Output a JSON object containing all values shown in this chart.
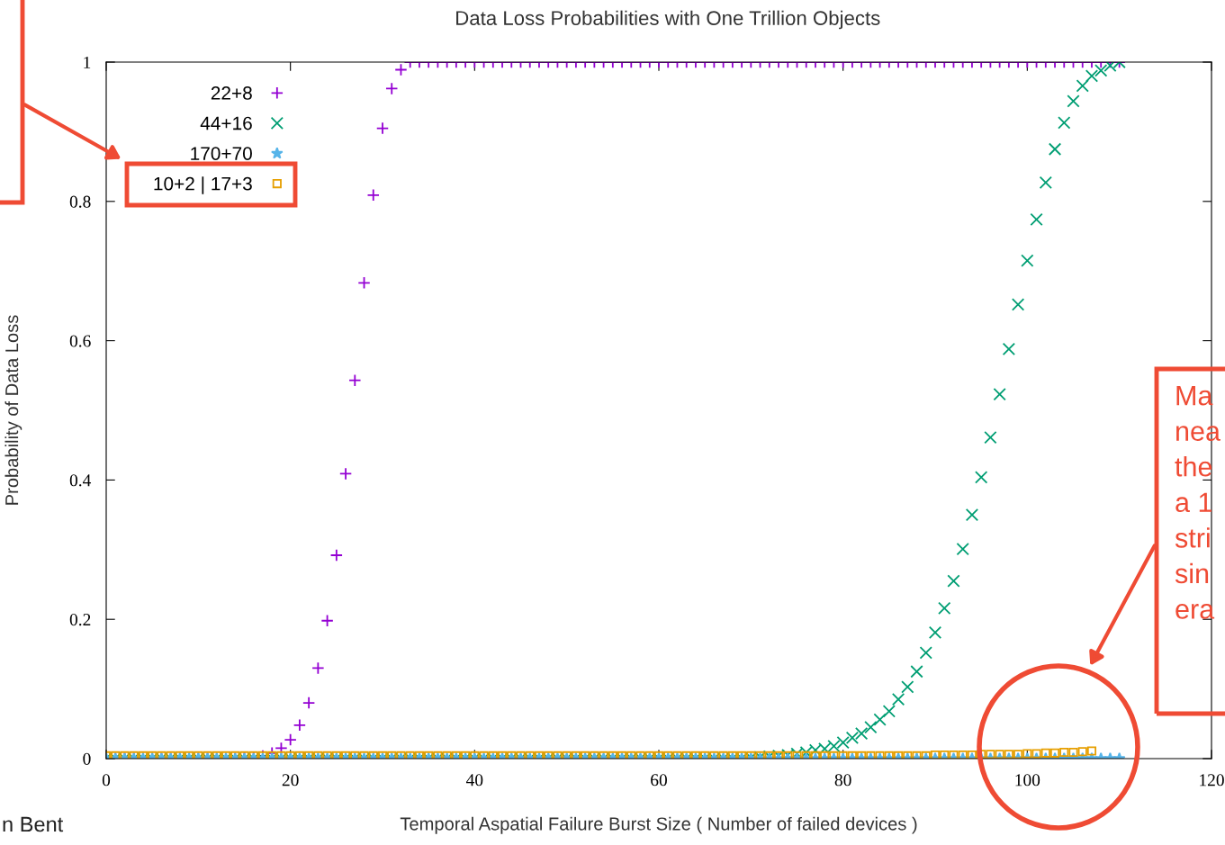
{
  "chart_data": {
    "type": "scatter",
    "title": "Data Loss Probabilities with One Trillion Objects",
    "xlabel": "Temporal Aspatial Failure Burst Size ( Number of failed devices )",
    "ylabel": "Probability of Data Loss",
    "x": [
      0,
      1,
      2,
      3,
      4,
      5,
      6,
      7,
      8,
      9,
      10,
      11,
      12,
      13,
      14,
      15,
      16,
      17,
      18,
      19,
      20,
      21,
      22,
      23,
      24,
      25,
      26,
      27,
      28,
      29,
      30,
      31,
      32,
      33,
      34,
      35,
      36,
      37,
      38,
      39,
      40,
      41,
      42,
      43,
      44,
      45,
      46,
      47,
      48,
      49,
      50,
      51,
      52,
      53,
      54,
      55,
      56,
      57,
      58,
      59,
      60,
      61,
      62,
      63,
      64,
      65,
      66,
      67,
      68,
      69,
      70,
      71,
      72,
      73,
      74,
      75,
      76,
      77,
      78,
      79,
      80,
      81,
      82,
      83,
      84,
      85,
      86,
      87,
      88,
      89,
      90,
      91,
      92,
      93,
      94,
      95,
      96,
      97,
      98,
      99,
      100,
      101,
      102,
      103,
      104,
      105,
      106,
      107,
      108,
      109,
      110
    ],
    "series": [
      {
        "name": "22+8",
        "color": "#9400d3",
        "marker": "plus",
        "values": [
          null,
          0,
          0,
          0,
          0,
          0,
          0,
          0,
          0,
          0,
          0,
          0,
          0,
          0,
          0,
          0.001,
          0.002,
          0.004,
          0.008,
          0.015,
          0.027,
          0.048,
          0.08,
          0.13,
          0.198,
          0.292,
          0.409,
          0.543,
          0.683,
          0.809,
          0.905,
          0.962,
          0.989,
          1,
          1,
          1,
          1,
          1,
          1,
          1,
          1,
          1,
          1,
          1,
          1,
          1,
          1,
          1,
          1,
          1,
          1,
          1,
          1,
          1,
          1,
          1,
          1,
          1,
          1,
          1,
          1,
          1,
          1,
          1,
          1,
          1,
          1,
          1,
          1,
          1,
          1,
          1,
          1,
          1,
          1,
          1,
          1,
          1,
          1,
          1,
          1,
          1,
          1,
          1,
          1,
          1,
          1,
          1,
          1,
          1,
          1,
          1,
          1,
          1,
          1,
          1,
          1,
          1,
          1,
          1,
          1,
          1,
          1,
          1,
          1,
          1,
          1,
          1,
          1,
          1,
          1
        ]
      },
      {
        "name": "44+16",
        "color": "#009e73",
        "marker": "cross",
        "values": [
          0,
          0,
          0,
          0,
          0,
          0,
          0,
          0,
          0,
          0,
          0,
          0,
          0,
          0,
          0,
          0,
          0,
          0,
          0,
          0,
          0,
          0,
          0,
          0,
          0,
          0,
          0,
          0,
          0,
          0,
          0,
          0,
          0,
          0,
          0,
          0,
          0,
          0,
          0,
          0,
          0,
          0,
          0,
          0,
          0,
          0,
          0,
          0,
          0,
          0,
          0,
          0,
          0,
          0,
          0,
          0,
          0,
          0,
          0,
          0,
          0,
          0,
          0,
          0,
          0,
          0,
          0,
          0,
          0,
          0,
          0.001,
          0.002,
          0.003,
          0.004,
          0.005,
          0.007,
          0.009,
          0.012,
          0.014,
          0.018,
          0.023,
          0.03,
          0.036,
          0.045,
          0.056,
          0.068,
          0.085,
          0.103,
          0.125,
          0.152,
          0.181,
          0.216,
          0.255,
          0.301,
          0.35,
          0.404,
          0.461,
          0.523,
          0.588,
          0.652,
          0.715,
          0.774,
          0.827,
          0.875,
          0.913,
          0.944,
          0.966,
          0.98,
          0.988,
          0.995,
          1.0
        ]
      },
      {
        "name": "170+70",
        "color": "#56b4e9",
        "marker": "star",
        "values": [
          0,
          0,
          0,
          0,
          0,
          0,
          0,
          0,
          0,
          0,
          0,
          0,
          0,
          0,
          0,
          0,
          0,
          0,
          0,
          0,
          0,
          0,
          0,
          0,
          0,
          0,
          0,
          0,
          0,
          0,
          0,
          0,
          0,
          0,
          0,
          0,
          0,
          0,
          0,
          0,
          0,
          0,
          0,
          0,
          0,
          0,
          0,
          0,
          0,
          0,
          0,
          0,
          0,
          0,
          0,
          0,
          0,
          0,
          0,
          0,
          0,
          0,
          0,
          0,
          0,
          0,
          0,
          0,
          0,
          0,
          0,
          0,
          0,
          0,
          0,
          0,
          0,
          0,
          0,
          0,
          0,
          0,
          0,
          0,
          0,
          0,
          0,
          0,
          0,
          0,
          0,
          0,
          0,
          0,
          0,
          0,
          0,
          0,
          0,
          0,
          0,
          0,
          0,
          0,
          0,
          0,
          0,
          0,
          0,
          0,
          0
        ]
      },
      {
        "name": "10+2 | 17+3",
        "color": "#e69f00",
        "marker": "square",
        "x": [
          0,
          1,
          2,
          3,
          4,
          5,
          6,
          7,
          8,
          9,
          10,
          11,
          12,
          13,
          14,
          15,
          16,
          17,
          18,
          19,
          20,
          21,
          22,
          23,
          24,
          25,
          26,
          27,
          28,
          29,
          30,
          31,
          32,
          33,
          34,
          35,
          36,
          37,
          38,
          39,
          40,
          41,
          42,
          43,
          44,
          45,
          46,
          47,
          48,
          49,
          50,
          51,
          52,
          53,
          54,
          55,
          56,
          57,
          58,
          59,
          60,
          61,
          62,
          63,
          64,
          65,
          66,
          67,
          68,
          69,
          70,
          71,
          72,
          73,
          74,
          75,
          76,
          77,
          78,
          79,
          80,
          81,
          82,
          83,
          84,
          85,
          86,
          87,
          88,
          89,
          90,
          91,
          92,
          93,
          94,
          95,
          96,
          97,
          98,
          99,
          100,
          101,
          102,
          103,
          104,
          105,
          106,
          107
        ],
        "values": [
          0.004,
          0.004,
          0.004,
          0.004,
          0.004,
          0.004,
          0.004,
          0.004,
          0.004,
          0.004,
          0.004,
          0.004,
          0.004,
          0.004,
          0.004,
          0.004,
          0.004,
          0.004,
          0.004,
          0.004,
          0.004,
          0.004,
          0.004,
          0.004,
          0.004,
          0.004,
          0.004,
          0.004,
          0.004,
          0.004,
          0.004,
          0.004,
          0.004,
          0.004,
          0.004,
          0.004,
          0.004,
          0.004,
          0.004,
          0.004,
          0.004,
          0.004,
          0.004,
          0.004,
          0.004,
          0.004,
          0.004,
          0.004,
          0.004,
          0.004,
          0.004,
          0.004,
          0.004,
          0.004,
          0.004,
          0.004,
          0.004,
          0.004,
          0.004,
          0.004,
          0.004,
          0.004,
          0.004,
          0.004,
          0.004,
          0.004,
          0.004,
          0.004,
          0.004,
          0.004,
          0.004,
          0.004,
          0.004,
          0.004,
          0.004,
          0.004,
          0.004,
          0.004,
          0.004,
          0.004,
          0.004,
          0.004,
          0.004,
          0.004,
          0.004,
          0.004,
          0.004,
          0.004,
          0.004,
          0.004,
          0.005,
          0.005,
          0.005,
          0.005,
          0.005,
          0.006,
          0.006,
          0.006,
          0.006,
          0.006,
          0.007,
          0.007,
          0.008,
          0.008,
          0.009,
          0.009,
          0.01,
          0.011
        ]
      }
    ],
    "xlim": [
      0,
      120
    ],
    "xticks": [
      0,
      20,
      40,
      60,
      80,
      100,
      120
    ],
    "ylim": [
      0,
      1
    ],
    "yticks": [
      0,
      0.2,
      0.4,
      0.6,
      0.8,
      1
    ],
    "legend": "top left",
    "grid": false,
    "annotations": [
      "Ma\nnea\nthe\na 1\nstri\nsin\nera",
      "n Bent"
    ]
  }
}
